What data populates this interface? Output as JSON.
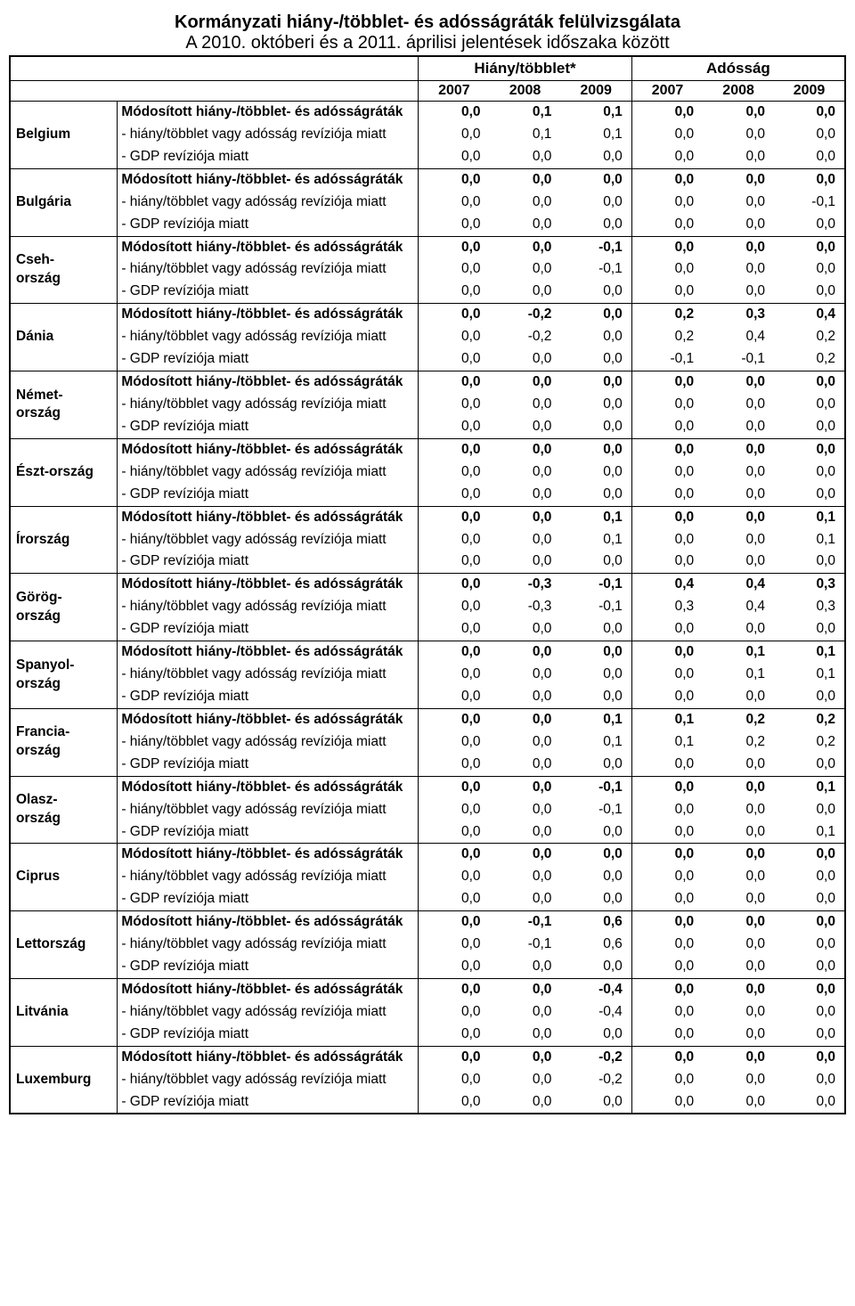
{
  "title": "Kormányzati hiány-/többlet- és adósságráták felülvizsgálata",
  "subtitle": "A 2010. októberi és a 2011. áprilisi jelentések időszaka között",
  "header_group_deficit": "Hiány/többlet*",
  "header_group_debt": "Adósság",
  "years": [
    "2007",
    "2008",
    "2009",
    "2007",
    "2008",
    "2009"
  ],
  "row_labels": {
    "modified": "Módosított hiány-/többlet- és adósságráták",
    "revision_ds": "- hiány/többlet vagy adósság revíziója miatt",
    "revision_gdp": "- GDP revíziója miatt"
  },
  "countries": [
    {
      "name": "Belgium",
      "rows": [
        [
          "0,0",
          "0,1",
          "0,1",
          "0,0",
          "0,0",
          "0,0"
        ],
        [
          "0,0",
          "0,1",
          "0,1",
          "0,0",
          "0,0",
          "0,0"
        ],
        [
          "0,0",
          "0,0",
          "0,0",
          "0,0",
          "0,0",
          "0,0"
        ]
      ]
    },
    {
      "name": "Bulgária",
      "rows": [
        [
          "0,0",
          "0,0",
          "0,0",
          "0,0",
          "0,0",
          "0,0"
        ],
        [
          "0,0",
          "0,0",
          "0,0",
          "0,0",
          "0,0",
          "-0,1"
        ],
        [
          "0,0",
          "0,0",
          "0,0",
          "0,0",
          "0,0",
          "0,0"
        ]
      ]
    },
    {
      "name": "Cseh-ország",
      "rows": [
        [
          "0,0",
          "0,0",
          "-0,1",
          "0,0",
          "0,0",
          "0,0"
        ],
        [
          "0,0",
          "0,0",
          "-0,1",
          "0,0",
          "0,0",
          "0,0"
        ],
        [
          "0,0",
          "0,0",
          "0,0",
          "0,0",
          "0,0",
          "0,0"
        ]
      ]
    },
    {
      "name": "Dánia",
      "rows": [
        [
          "0,0",
          "-0,2",
          "0,0",
          "0,2",
          "0,3",
          "0,4"
        ],
        [
          "0,0",
          "-0,2",
          "0,0",
          "0,2",
          "0,4",
          "0,2"
        ],
        [
          "0,0",
          "0,0",
          "0,0",
          "-0,1",
          "-0,1",
          "0,2"
        ]
      ]
    },
    {
      "name": "Német-ország",
      "rows": [
        [
          "0,0",
          "0,0",
          "0,0",
          "0,0",
          "0,0",
          "0,0"
        ],
        [
          "0,0",
          "0,0",
          "0,0",
          "0,0",
          "0,0",
          "0,0"
        ],
        [
          "0,0",
          "0,0",
          "0,0",
          "0,0",
          "0,0",
          "0,0"
        ]
      ]
    },
    {
      "name": "Észt-ország",
      "rows": [
        [
          "0,0",
          "0,0",
          "0,0",
          "0,0",
          "0,0",
          "0,0"
        ],
        [
          "0,0",
          "0,0",
          "0,0",
          "0,0",
          "0,0",
          "0,0"
        ],
        [
          "0,0",
          "0,0",
          "0,0",
          "0,0",
          "0,0",
          "0,0"
        ]
      ]
    },
    {
      "name": "Írország",
      "rows": [
        [
          "0,0",
          "0,0",
          "0,1",
          "0,0",
          "0,0",
          "0,1"
        ],
        [
          "0,0",
          "0,0",
          "0,1",
          "0,0",
          "0,0",
          "0,1"
        ],
        [
          "0,0",
          "0,0",
          "0,0",
          "0,0",
          "0,0",
          "0,0"
        ]
      ]
    },
    {
      "name": "Görög-ország",
      "rows": [
        [
          "0,0",
          "-0,3",
          "-0,1",
          "0,4",
          "0,4",
          "0,3"
        ],
        [
          "0,0",
          "-0,3",
          "-0,1",
          "0,3",
          "0,4",
          "0,3"
        ],
        [
          "0,0",
          "0,0",
          "0,0",
          "0,0",
          "0,0",
          "0,0"
        ]
      ]
    },
    {
      "name": "Spanyol-ország",
      "rows": [
        [
          "0,0",
          "0,0",
          "0,0",
          "0,0",
          "0,1",
          "0,1"
        ],
        [
          "0,0",
          "0,0",
          "0,0",
          "0,0",
          "0,1",
          "0,1"
        ],
        [
          "0,0",
          "0,0",
          "0,0",
          "0,0",
          "0,0",
          "0,0"
        ]
      ]
    },
    {
      "name": "Francia-ország",
      "rows": [
        [
          "0,0",
          "0,0",
          "0,1",
          "0,1",
          "0,2",
          "0,2"
        ],
        [
          "0,0",
          "0,0",
          "0,1",
          "0,1",
          "0,2",
          "0,2"
        ],
        [
          "0,0",
          "0,0",
          "0,0",
          "0,0",
          "0,0",
          "0,0"
        ]
      ]
    },
    {
      "name": "Olasz-ország",
      "rows": [
        [
          "0,0",
          "0,0",
          "-0,1",
          "0,0",
          "0,0",
          "0,1"
        ],
        [
          "0,0",
          "0,0",
          "-0,1",
          "0,0",
          "0,0",
          "0,0"
        ],
        [
          "0,0",
          "0,0",
          "0,0",
          "0,0",
          "0,0",
          "0,1"
        ]
      ]
    },
    {
      "name": "Ciprus",
      "rows": [
        [
          "0,0",
          "0,0",
          "0,0",
          "0,0",
          "0,0",
          "0,0"
        ],
        [
          "0,0",
          "0,0",
          "0,0",
          "0,0",
          "0,0",
          "0,0"
        ],
        [
          "0,0",
          "0,0",
          "0,0",
          "0,0",
          "0,0",
          "0,0"
        ]
      ]
    },
    {
      "name": "Lettország",
      "rows": [
        [
          "0,0",
          "-0,1",
          "0,6",
          "0,0",
          "0,0",
          "0,0"
        ],
        [
          "0,0",
          "-0,1",
          "0,6",
          "0,0",
          "0,0",
          "0,0"
        ],
        [
          "0,0",
          "0,0",
          "0,0",
          "0,0",
          "0,0",
          "0,0"
        ]
      ]
    },
    {
      "name": "Litvánia",
      "rows": [
        [
          "0,0",
          "0,0",
          "-0,4",
          "0,0",
          "0,0",
          "0,0"
        ],
        [
          "0,0",
          "0,0",
          "-0,4",
          "0,0",
          "0,0",
          "0,0"
        ],
        [
          "0,0",
          "0,0",
          "0,0",
          "0,0",
          "0,0",
          "0,0"
        ]
      ]
    },
    {
      "name": "Luxemburg",
      "rows": [
        [
          "0,0",
          "0,0",
          "-0,2",
          "0,0",
          "0,0",
          "0,0"
        ],
        [
          "0,0",
          "0,0",
          "-0,2",
          "0,0",
          "0,0",
          "0,0"
        ],
        [
          "0,0",
          "0,0",
          "0,0",
          "0,0",
          "0,0",
          "0,0"
        ]
      ]
    }
  ],
  "style": {
    "font_family": "Arial, sans-serif",
    "text_color": "#000000",
    "background_color": "#ffffff",
    "border_color": "#000000"
  }
}
